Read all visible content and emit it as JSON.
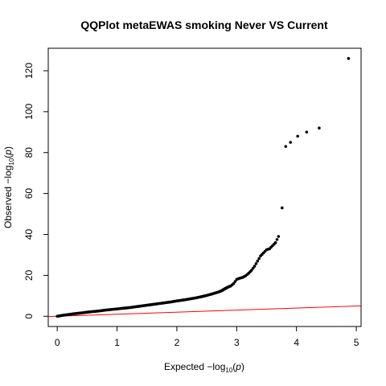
{
  "chart_data": {
    "type": "scatter",
    "title": "QQPlot metaEWAS smoking Never VS Current",
    "xlabel": {
      "prefix": "Expected  −log",
      "sub": "10",
      "suffix": "(",
      "var": "p",
      "close": ")"
    },
    "ylabel": {
      "prefix": "Observed  −log",
      "sub": "10",
      "suffix": "(",
      "var": "p",
      "close": ")"
    },
    "xlim": [
      0,
      5
    ],
    "ylim": [
      0,
      126
    ],
    "x_ticks": [
      0,
      1,
      2,
      3,
      4,
      5
    ],
    "y_ticks": [
      0,
      20,
      40,
      60,
      80,
      100,
      120
    ],
    "grid": false,
    "legend": "none",
    "reference_line": {
      "slope": 1,
      "intercept": 0,
      "color": "#ff0000"
    },
    "point_color": "#000000",
    "curve_points": [
      [
        0.0,
        0.0
      ],
      [
        0.1,
        0.5
      ],
      [
        0.2,
        0.9
      ],
      [
        0.3,
        1.3
      ],
      [
        0.4,
        1.6
      ],
      [
        0.5,
        2.0
      ],
      [
        0.6,
        2.3
      ],
      [
        0.7,
        2.6
      ],
      [
        0.8,
        3.0
      ],
      [
        0.9,
        3.3
      ],
      [
        1.0,
        3.6
      ],
      [
        1.1,
        3.9
      ],
      [
        1.2,
        4.2
      ],
      [
        1.3,
        4.6
      ],
      [
        1.4,
        5.0
      ],
      [
        1.5,
        5.4
      ],
      [
        1.6,
        5.8
      ],
      [
        1.7,
        6.2
      ],
      [
        1.8,
        6.6
      ],
      [
        1.9,
        7.0
      ],
      [
        2.0,
        7.5
      ],
      [
        2.1,
        7.9
      ],
      [
        2.2,
        8.4
      ],
      [
        2.3,
        8.9
      ],
      [
        2.4,
        9.5
      ],
      [
        2.5,
        10.2
      ],
      [
        2.6,
        11.0
      ],
      [
        2.7,
        11.9
      ],
      [
        2.75,
        12.5
      ],
      [
        2.8,
        13.4
      ],
      [
        2.85,
        14.2
      ],
      [
        2.9,
        14.8
      ],
      [
        2.95,
        16.0
      ],
      [
        3.0,
        18.0
      ],
      [
        3.05,
        18.6
      ],
      [
        3.1,
        19.0
      ],
      [
        3.15,
        19.8
      ],
      [
        3.2,
        21.0
      ],
      [
        3.25,
        22.5
      ],
      [
        3.3,
        24.5
      ],
      [
        3.35,
        27.0
      ],
      [
        3.4,
        29.5
      ],
      [
        3.45,
        31.0
      ],
      [
        3.5,
        32.5
      ],
      [
        3.55,
        33.0
      ],
      [
        3.6,
        34.5
      ],
      [
        3.65,
        36.0
      ],
      [
        3.7,
        39.0
      ]
    ],
    "outlier_points": [
      [
        3.76,
        53
      ],
      [
        3.82,
        83
      ],
      [
        3.9,
        85
      ],
      [
        4.02,
        88
      ],
      [
        4.17,
        90
      ],
      [
        4.38,
        92
      ],
      [
        4.87,
        126
      ]
    ]
  }
}
